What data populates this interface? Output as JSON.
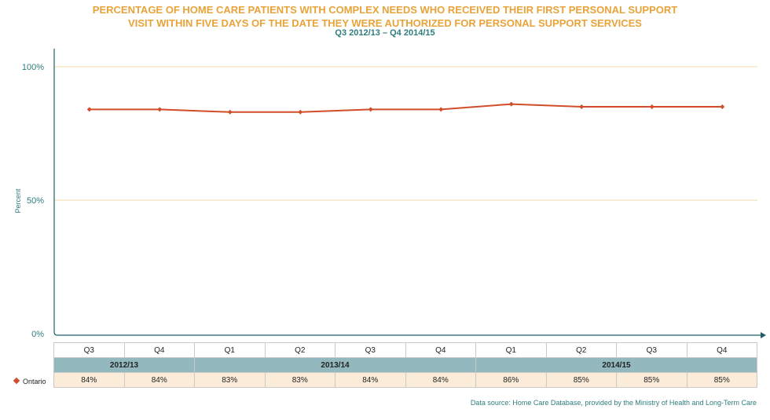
{
  "title": {
    "line1": "PERCENTAGE OF HOME CARE PATIENTS WITH COMPLEX NEEDS WHO RECEIVED THEIR FIRST PERSONAL SUPPORT",
    "line2": "VISIT WITHIN FIVE DAYS OF THE DATE THEY WERE AUTHORIZED FOR PERSONAL SUPPORT SERVICES",
    "subtitle": "Q3 2012/13 – Q4 2014/15"
  },
  "colors": {
    "title": "#E8A33A",
    "subtitle": "#2E7D7D",
    "line": "#D24E2B",
    "gridline": "#F3D9A8",
    "axis": "#1F5F6B",
    "year_row": "#93B9BF",
    "value_row": "#FBEBD9"
  },
  "chart_data": {
    "type": "line",
    "ylabel": "Percent",
    "ylim": [
      0,
      100
    ],
    "yticks": [
      {
        "value": 0,
        "label": "0%"
      },
      {
        "value": 50,
        "label": "50%"
      },
      {
        "value": 100,
        "label": "100%"
      }
    ],
    "quarters": [
      "Q3",
      "Q4",
      "Q1",
      "Q2",
      "Q3",
      "Q4",
      "Q1",
      "Q2",
      "Q3",
      "Q4"
    ],
    "years": [
      {
        "label": "2012/13",
        "span": 2
      },
      {
        "label": "2013/14",
        "span": 4
      },
      {
        "label": "2014/15",
        "span": 4
      }
    ],
    "series": [
      {
        "name": "Ontario",
        "values": [
          84,
          84,
          83,
          83,
          84,
          84,
          86,
          85,
          85,
          85
        ],
        "labels": [
          "84%",
          "84%",
          "83%",
          "83%",
          "84%",
          "84%",
          "86%",
          "85%",
          "85%",
          "85%"
        ]
      }
    ],
    "grid": "horizontal",
    "legend_position": "left of table"
  },
  "source": "Data source: Home Care Database, provided by the Ministry of Health and Long-Term Care"
}
